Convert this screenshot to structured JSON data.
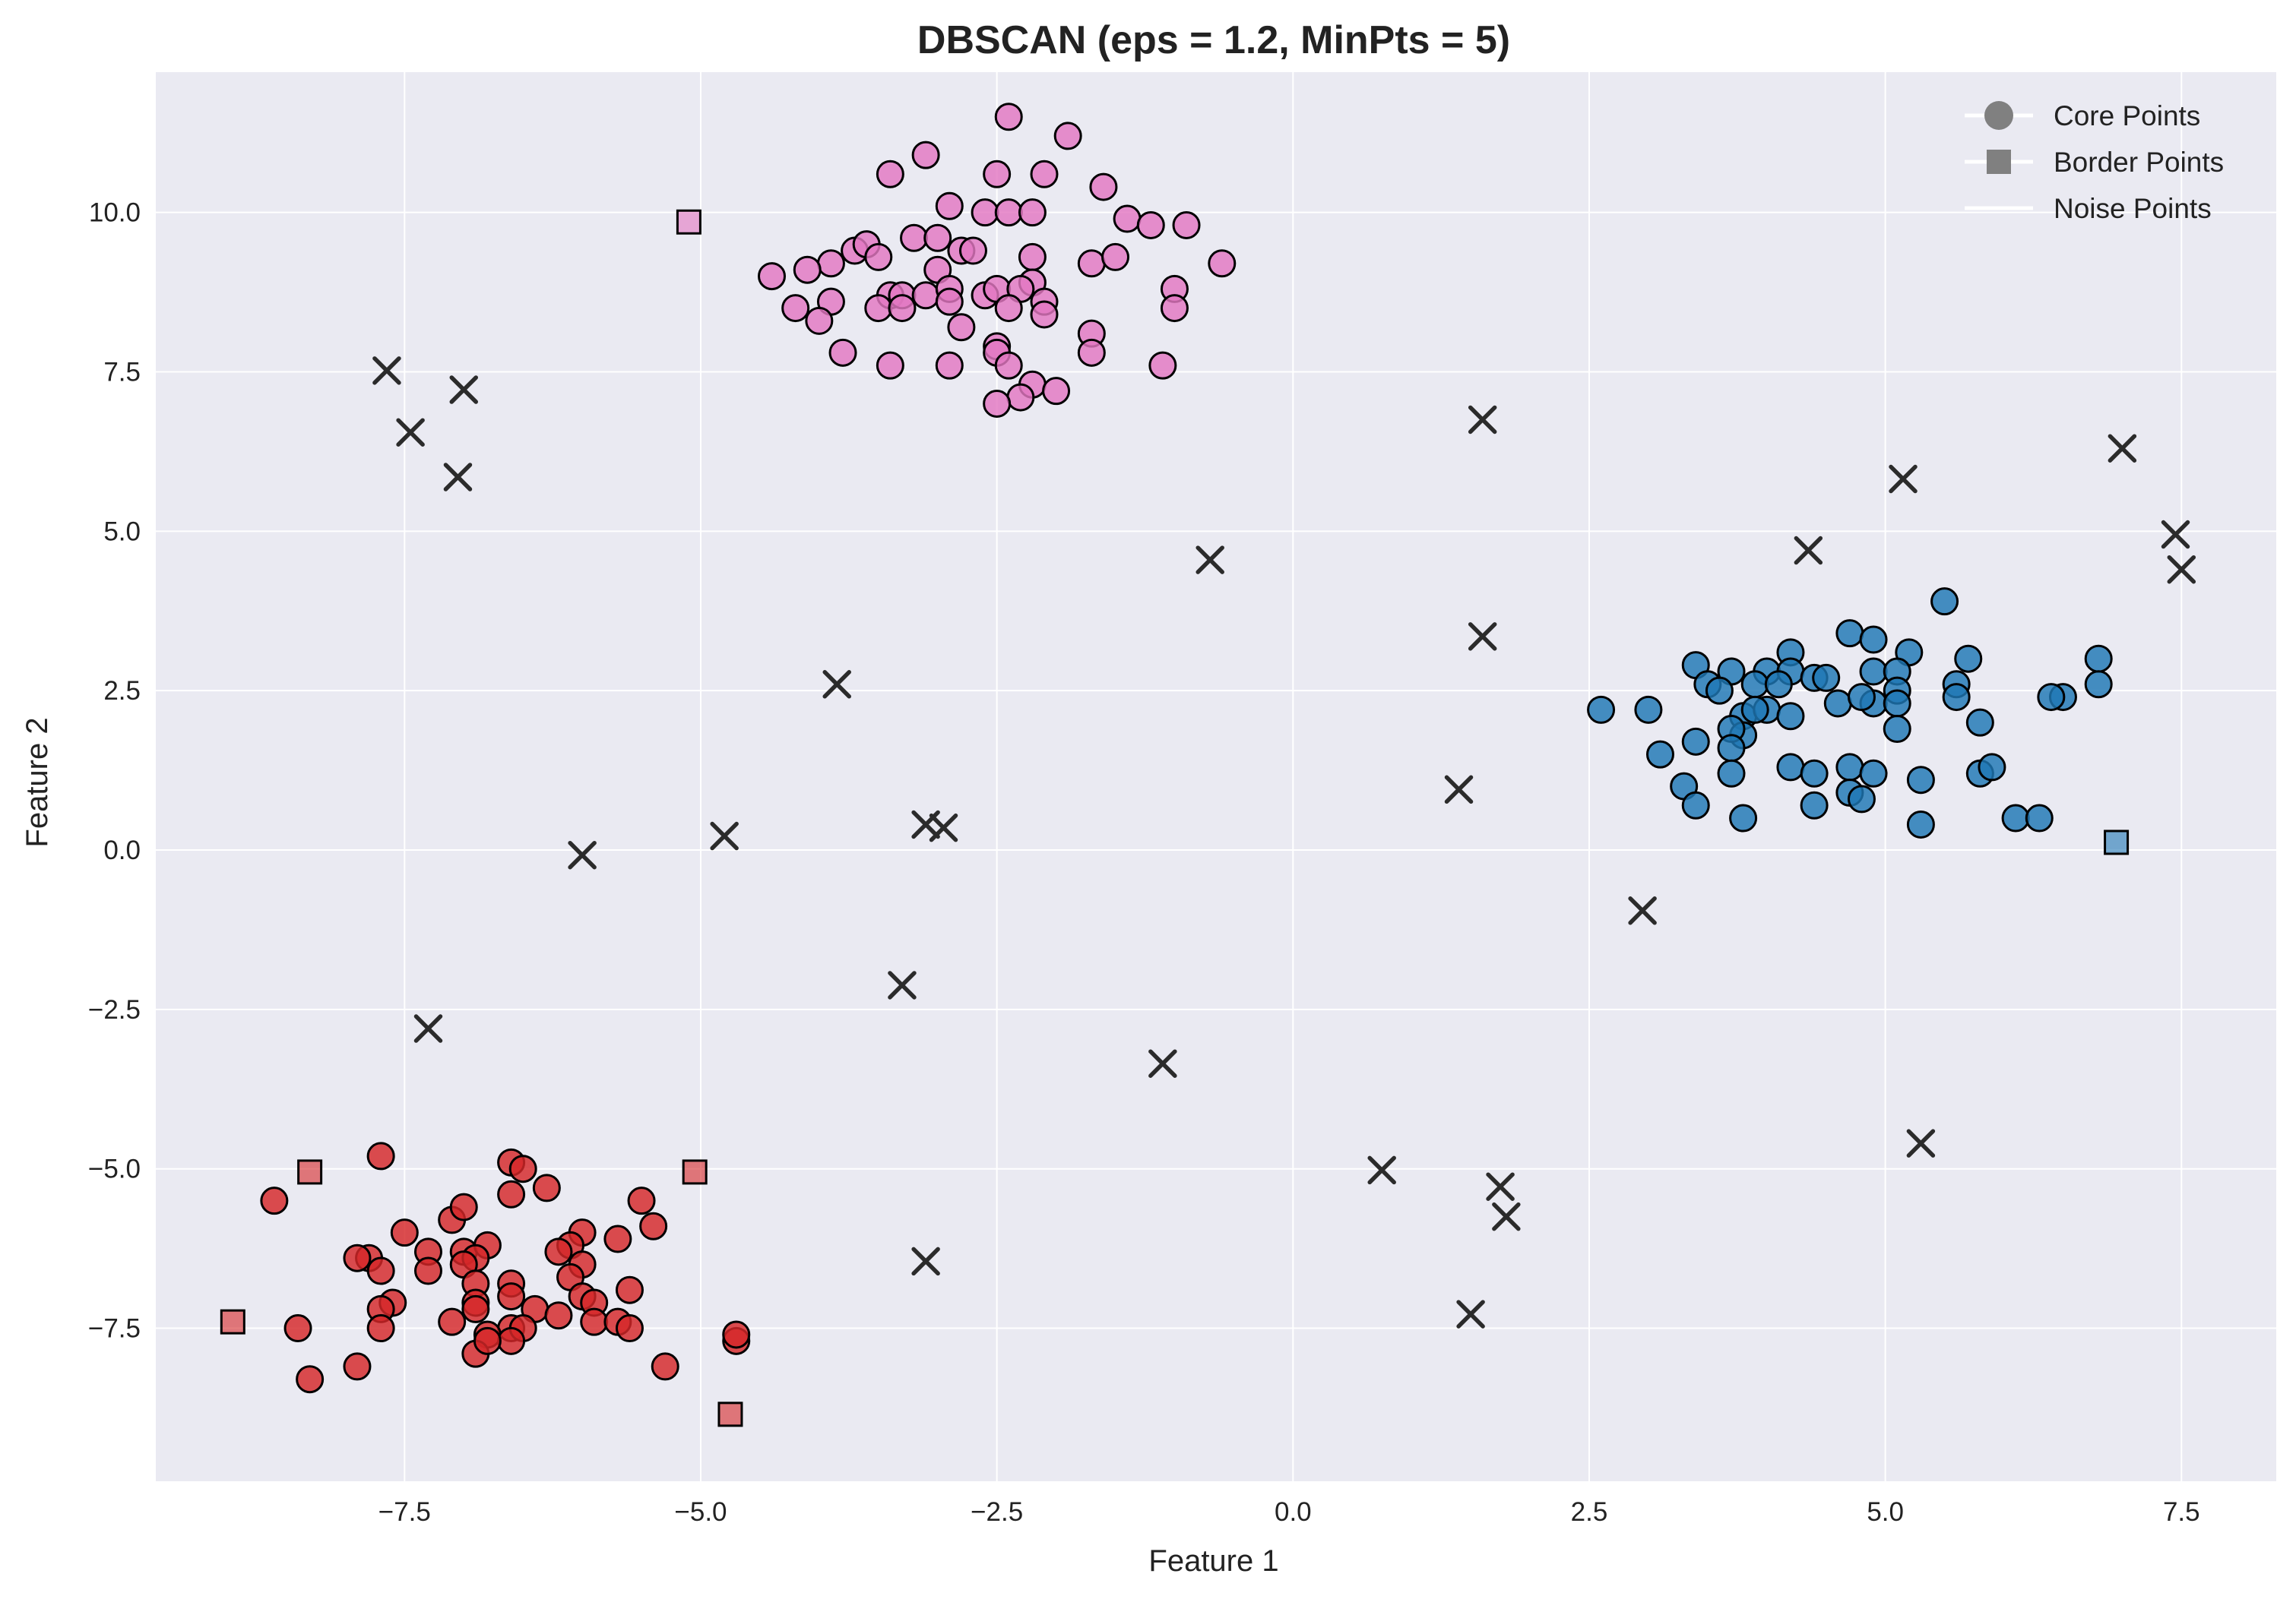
{
  "chart_data": {
    "type": "scatter",
    "title": "DBSCAN (eps = 1.2, MinPts = 5)",
    "xlabel": "Feature 1",
    "ylabel": "Feature 2",
    "xlim": [
      -9.6,
      8.3
    ],
    "ylim": [
      -9.9,
      12.2
    ],
    "xticks": [
      -7.5,
      -5.0,
      -2.5,
      0.0,
      2.5,
      5.0,
      7.5
    ],
    "xtick_labels": [
      "−7.5",
      "−5.0",
      "−2.5",
      "0.0",
      "2.5",
      "5.0",
      "7.5"
    ],
    "yticks": [
      -7.5,
      -5.0,
      -2.5,
      0.0,
      2.5,
      5.0,
      7.5,
      10.0
    ],
    "ytick_labels": [
      "−7.5",
      "−5.0",
      "−2.5",
      "0.0",
      "2.5",
      "5.0",
      "7.5",
      "10.0"
    ],
    "grid": true,
    "background": "#eaeaf2",
    "legend": {
      "placement": "top-right",
      "entries": [
        {
          "label": "Core Points",
          "marker": "circle"
        },
        {
          "label": "Border Points",
          "marker": "square"
        },
        {
          "label": "Noise Points",
          "marker": "line"
        }
      ]
    },
    "clusters": [
      {
        "color": "#e377c2",
        "core": [
          [
            -2.4,
            11.5
          ],
          [
            -1.9,
            11.2
          ],
          [
            -3.4,
            10.6
          ],
          [
            -3.1,
            10.9
          ],
          [
            -2.5,
            10.6
          ],
          [
            -2.1,
            10.6
          ],
          [
            -1.6,
            10.4
          ],
          [
            -2.9,
            10.1
          ],
          [
            -2.6,
            10.0
          ],
          [
            -2.4,
            10.0
          ],
          [
            -2.2,
            10.0
          ],
          [
            -1.4,
            9.9
          ],
          [
            -1.2,
            9.8
          ],
          [
            -0.9,
            9.8
          ],
          [
            -3.2,
            9.6
          ],
          [
            -3.0,
            9.6
          ],
          [
            -3.7,
            9.4
          ],
          [
            -3.6,
            9.5
          ],
          [
            -3.5,
            9.3
          ],
          [
            -2.8,
            9.4
          ],
          [
            -2.7,
            9.4
          ],
          [
            -2.2,
            9.3
          ],
          [
            -1.7,
            9.2
          ],
          [
            -1.5,
            9.3
          ],
          [
            -0.6,
            9.2
          ],
          [
            -3.9,
            9.2
          ],
          [
            -4.1,
            9.1
          ],
          [
            -4.4,
            9.0
          ],
          [
            -3.0,
            9.1
          ],
          [
            -2.2,
            8.9
          ],
          [
            -3.4,
            8.7
          ],
          [
            -3.3,
            8.7
          ],
          [
            -3.1,
            8.7
          ],
          [
            -2.9,
            8.8
          ],
          [
            -2.6,
            8.7
          ],
          [
            -2.5,
            8.8
          ],
          [
            -2.3,
            8.8
          ],
          [
            -2.1,
            8.6
          ],
          [
            -1.0,
            8.8
          ],
          [
            -3.9,
            8.6
          ],
          [
            -3.5,
            8.5
          ],
          [
            -3.3,
            8.5
          ],
          [
            -2.9,
            8.6
          ],
          [
            -2.4,
            8.5
          ],
          [
            -2.1,
            8.4
          ],
          [
            -1.0,
            8.5
          ],
          [
            -4.2,
            8.5
          ],
          [
            -4.0,
            8.3
          ],
          [
            -2.8,
            8.2
          ],
          [
            -1.7,
            8.1
          ],
          [
            -2.5,
            7.9
          ],
          [
            -3.8,
            7.8
          ],
          [
            -2.5,
            7.8
          ],
          [
            -1.7,
            7.8
          ],
          [
            -1.1,
            7.6
          ],
          [
            -3.4,
            7.6
          ],
          [
            -2.9,
            7.6
          ],
          [
            -2.4,
            7.6
          ],
          [
            -2.2,
            7.3
          ],
          [
            -2.0,
            7.2
          ],
          [
            -2.3,
            7.1
          ],
          [
            -2.5,
            7.0
          ]
        ],
        "border": [
          [
            -5.1,
            9.85
          ]
        ]
      },
      {
        "color": "#1f77b4",
        "core": [
          [
            5.5,
            3.9
          ],
          [
            4.7,
            3.4
          ],
          [
            4.9,
            3.3
          ],
          [
            4.2,
            3.1
          ],
          [
            5.2,
            3.1
          ],
          [
            5.7,
            3.0
          ],
          [
            6.8,
            3.0
          ],
          [
            3.4,
            2.9
          ],
          [
            4.0,
            2.8
          ],
          [
            4.2,
            2.8
          ],
          [
            4.9,
            2.8
          ],
          [
            5.1,
            2.8
          ],
          [
            3.7,
            2.8
          ],
          [
            4.4,
            2.7
          ],
          [
            4.5,
            2.7
          ],
          [
            5.6,
            2.6
          ],
          [
            6.8,
            2.6
          ],
          [
            3.5,
            2.6
          ],
          [
            3.9,
            2.6
          ],
          [
            4.1,
            2.6
          ],
          [
            3.6,
            2.5
          ],
          [
            5.1,
            2.5
          ],
          [
            6.5,
            2.4
          ],
          [
            6.4,
            2.4
          ],
          [
            5.6,
            2.4
          ],
          [
            4.6,
            2.3
          ],
          [
            4.9,
            2.3
          ],
          [
            5.1,
            2.3
          ],
          [
            4.8,
            2.4
          ],
          [
            2.6,
            2.2
          ],
          [
            3.0,
            2.2
          ],
          [
            3.8,
            2.1
          ],
          [
            4.0,
            2.2
          ],
          [
            4.2,
            2.1
          ],
          [
            3.9,
            2.2
          ],
          [
            5.1,
            1.9
          ],
          [
            5.8,
            2.0
          ],
          [
            3.8,
            1.8
          ],
          [
            3.7,
            1.9
          ],
          [
            3.1,
            1.5
          ],
          [
            3.4,
            1.7
          ],
          [
            3.7,
            1.6
          ],
          [
            4.2,
            1.3
          ],
          [
            4.4,
            1.2
          ],
          [
            4.7,
            1.3
          ],
          [
            4.9,
            1.2
          ],
          [
            5.3,
            1.1
          ],
          [
            5.8,
            1.2
          ],
          [
            5.9,
            1.3
          ],
          [
            3.3,
            1.0
          ],
          [
            3.7,
            1.2
          ],
          [
            4.7,
            0.9
          ],
          [
            4.8,
            0.8
          ],
          [
            4.4,
            0.7
          ],
          [
            3.4,
            0.7
          ],
          [
            3.8,
            0.5
          ],
          [
            5.3,
            0.4
          ],
          [
            6.1,
            0.5
          ],
          [
            6.3,
            0.5
          ]
        ],
        "border": [
          [
            6.95,
            0.12
          ]
        ]
      },
      {
        "color": "#d62728",
        "core": [
          [
            -7.7,
            -4.8
          ],
          [
            -6.6,
            -4.9
          ],
          [
            -6.5,
            -5.0
          ],
          [
            -8.6,
            -5.5
          ],
          [
            -6.6,
            -5.4
          ],
          [
            -6.3,
            -5.3
          ],
          [
            -5.5,
            -5.5
          ],
          [
            -7.1,
            -5.8
          ],
          [
            -7.0,
            -5.6
          ],
          [
            -5.4,
            -5.9
          ],
          [
            -7.5,
            -6.0
          ],
          [
            -6.0,
            -6.0
          ],
          [
            -5.7,
            -6.1
          ],
          [
            -7.0,
            -6.3
          ],
          [
            -6.8,
            -6.2
          ],
          [
            -6.1,
            -6.2
          ],
          [
            -6.2,
            -6.3
          ],
          [
            -7.8,
            -6.4
          ],
          [
            -7.9,
            -6.4
          ],
          [
            -7.3,
            -6.3
          ],
          [
            -6.9,
            -6.4
          ],
          [
            -6.0,
            -6.5
          ],
          [
            -7.7,
            -6.6
          ],
          [
            -7.3,
            -6.6
          ],
          [
            -7.0,
            -6.5
          ],
          [
            -6.1,
            -6.7
          ],
          [
            -6.9,
            -6.8
          ],
          [
            -6.6,
            -6.8
          ],
          [
            -5.6,
            -6.9
          ],
          [
            -7.6,
            -7.1
          ],
          [
            -7.7,
            -7.2
          ],
          [
            -6.9,
            -7.1
          ],
          [
            -6.6,
            -7.0
          ],
          [
            -6.4,
            -7.2
          ],
          [
            -6.0,
            -7.0
          ],
          [
            -5.9,
            -7.1
          ],
          [
            -7.1,
            -7.4
          ],
          [
            -6.9,
            -7.2
          ],
          [
            -6.6,
            -7.5
          ],
          [
            -6.5,
            -7.5
          ],
          [
            -6.2,
            -7.3
          ],
          [
            -5.9,
            -7.4
          ],
          [
            -5.7,
            -7.4
          ],
          [
            -5.6,
            -7.5
          ],
          [
            -8.4,
            -7.5
          ],
          [
            -7.7,
            -7.5
          ],
          [
            -6.8,
            -7.6
          ],
          [
            -6.6,
            -7.7
          ],
          [
            -6.9,
            -7.9
          ],
          [
            -6.8,
            -7.7
          ],
          [
            -7.9,
            -8.1
          ],
          [
            -8.3,
            -8.3
          ],
          [
            -5.3,
            -8.1
          ],
          [
            -4.7,
            -7.7
          ],
          [
            -4.7,
            -7.6
          ]
        ],
        "border": [
          [
            -8.3,
            -5.05
          ],
          [
            -5.05,
            -5.05
          ],
          [
            -8.95,
            -7.4
          ],
          [
            -4.75,
            -8.85
          ]
        ]
      }
    ],
    "noise_color": "#2b2b2b",
    "noise": [
      [
        -7.65,
        7.52
      ],
      [
        -7.0,
        7.22
      ],
      [
        -7.45,
        6.55
      ],
      [
        -7.05,
        5.85
      ],
      [
        1.6,
        6.75
      ],
      [
        5.15,
        5.82
      ],
      [
        7.0,
        6.3
      ],
      [
        -0.7,
        4.55
      ],
      [
        4.35,
        4.7
      ],
      [
        7.45,
        4.95
      ],
      [
        7.5,
        4.4
      ],
      [
        1.6,
        3.35
      ],
      [
        -3.85,
        2.6
      ],
      [
        1.4,
        0.95
      ],
      [
        -4.8,
        0.22
      ],
      [
        -3.1,
        0.4
      ],
      [
        -2.95,
        0.35
      ],
      [
        -6.0,
        -0.08
      ],
      [
        2.95,
        -0.95
      ],
      [
        -3.3,
        -2.12
      ],
      [
        -7.3,
        -2.8
      ],
      [
        -1.1,
        -3.35
      ],
      [
        5.3,
        -4.6
      ],
      [
        0.75,
        -5.02
      ],
      [
        1.75,
        -5.28
      ],
      [
        1.8,
        -5.75
      ],
      [
        -3.1,
        -6.45
      ],
      [
        1.5,
        -7.28
      ]
    ]
  }
}
